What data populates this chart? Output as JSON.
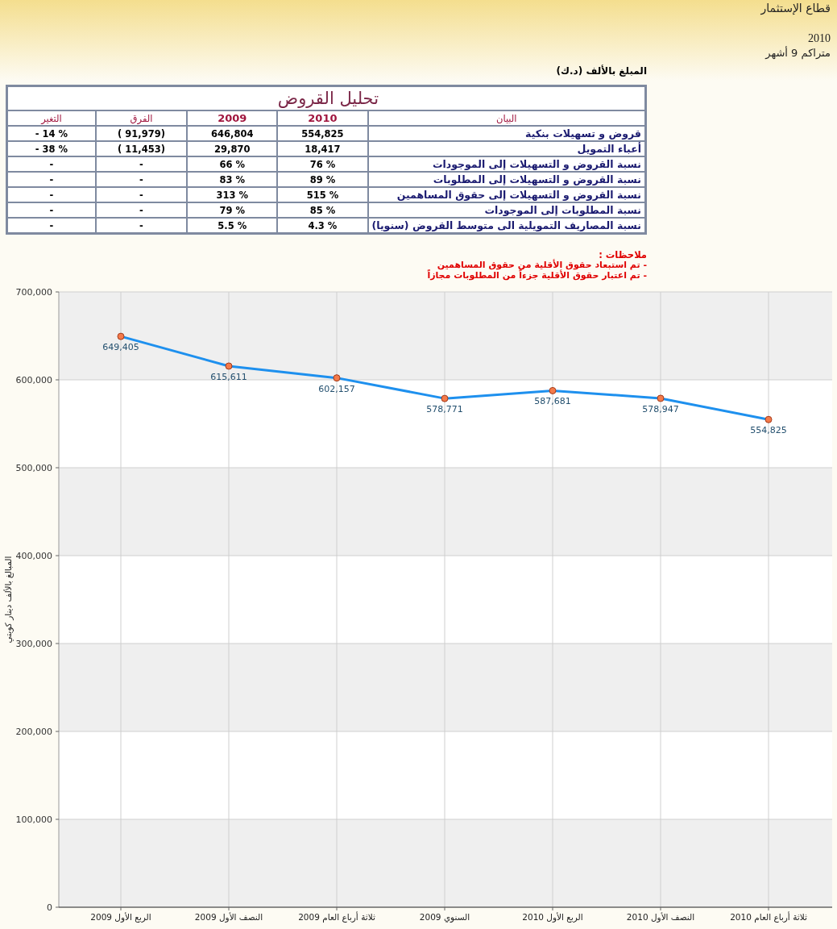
{
  "chart_data": [
    {
      "type": "other",
      "title": "تحليل القروض",
      "ylabel": "البيان",
      "categories": [
        "التغير",
        "الفرق",
        "2009",
        "2010"
      ],
      "y_categories": [
        "قروض و تسهيلات بنكية",
        "أعباء التمويل",
        "نسبة القروض و التسهيلات إلى الموجودات",
        "نسبة القروض و التسهيلات إلى المطلوبات",
        "نسبة القروض و التسهيلات إلى حقوق المساهمين",
        "نسبة المطلوبات إلى الموجودات",
        "نسبة المصاريف التمويلية الى متوسط القروض (سنويا)"
      ],
      "cell_labels": [
        [
          "- 14 %",
          "( 91,979)",
          "646,804",
          "554,825"
        ],
        [
          "- 38 %",
          "( 11,453)",
          "29,870",
          "18,417"
        ],
        [
          "-",
          "-",
          "66 %",
          "76 %"
        ],
        [
          "-",
          "-",
          "83 %",
          "89 %"
        ],
        [
          "-",
          "-",
          "313 %",
          "515 %"
        ],
        [
          "-",
          "-",
          "79 %",
          "85 %"
        ],
        [
          "-",
          "-",
          "5.5 %",
          "4.3 %"
        ]
      ],
      "annotations": [
        "قطاع الإستثمار",
        "2010",
        "متراكم 9 أشهر",
        "المبلغ بالألف (د.ك)",
        "ملاحظات :",
        "- تم استبعاد حقوق الأقلية من حقوق المساهمين",
        "- تم اعتبار حقوق الأقلية جزءاً من المطلوبات مجازاً"
      ]
    },
    {
      "type": "line",
      "ylabel": "المبالغ بالألف دينار كويتي",
      "categories": [
        "الربع الأول 2009",
        "النصف الأول 2009",
        "ثلاثة أرباع العام 2009",
        "السنوي 2009",
        "الربع الأول 2010",
        "النصف الأول 2010",
        "ثلاثة أرباع العام 2010"
      ],
      "values": [
        649405,
        615611,
        602157,
        578771,
        587681,
        578947,
        554825
      ],
      "color": "#1e90ee",
      "colors": [
        "#f47a4a",
        "#f47a4a",
        "#f47a4a",
        "#f47a4a",
        "#f47a4a",
        "#f47a4a",
        "#f47a4a"
      ],
      "value_labels": [
        "649,405",
        "615,611",
        "602,157",
        "578,771",
        "587,681",
        "578,947",
        "554,825"
      ],
      "marker": "circle",
      "grid": true,
      "ylim": [
        0,
        700000
      ],
      "yticks": [
        {
          "value": 0,
          "label": "0"
        },
        {
          "value": 100000,
          "label": "100,000"
        },
        {
          "value": 200000,
          "label": "200,000"
        },
        {
          "value": 300000,
          "label": "300,000"
        },
        {
          "value": 400000,
          "label": "400,000"
        },
        {
          "value": 500000,
          "label": "500,000"
        },
        {
          "value": 600000,
          "label": "600,000"
        },
        {
          "value": 700000,
          "label": "700,000"
        }
      ]
    }
  ]
}
